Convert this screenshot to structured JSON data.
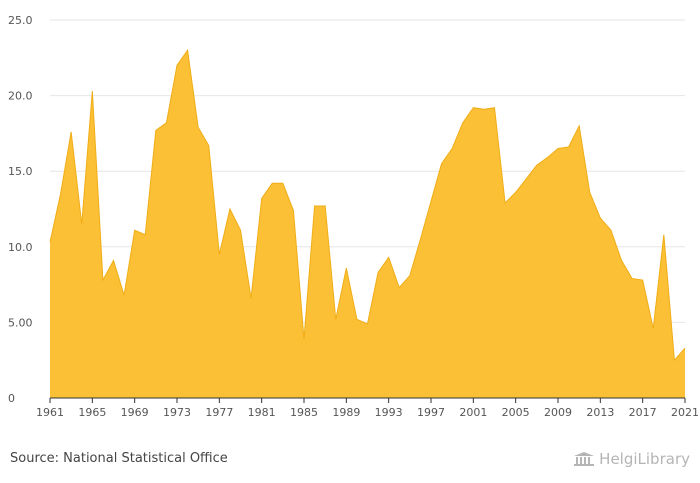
{
  "chart_data": {
    "type": "area",
    "x": [
      1961,
      1962,
      1963,
      1964,
      1965,
      1966,
      1967,
      1968,
      1969,
      1970,
      1971,
      1972,
      1973,
      1974,
      1975,
      1976,
      1977,
      1978,
      1979,
      1980,
      1981,
      1982,
      1983,
      1984,
      1985,
      1986,
      1987,
      1988,
      1989,
      1990,
      1991,
      1992,
      1993,
      1994,
      1995,
      1996,
      1997,
      1998,
      1999,
      2000,
      2001,
      2002,
      2003,
      2004,
      2005,
      2006,
      2007,
      2008,
      2009,
      2010,
      2011,
      2012,
      2013,
      2014,
      2015,
      2016,
      2017,
      2018,
      2019,
      2020,
      2021
    ],
    "values": [
      10.3,
      13.5,
      17.6,
      11.5,
      20.3,
      7.8,
      9.1,
      6.8,
      11.1,
      10.8,
      17.7,
      18.2,
      22.0,
      23.0,
      17.9,
      16.7,
      9.5,
      12.5,
      11.1,
      6.6,
      13.2,
      14.2,
      14.2,
      12.4,
      3.9,
      12.7,
      12.7,
      5.2,
      8.6,
      5.2,
      4.9,
      8.3,
      9.3,
      7.3,
      8.1,
      10.5,
      13.0,
      15.5,
      16.5,
      18.2,
      19.2,
      19.1,
      19.2,
      12.9,
      13.6,
      14.5,
      15.4,
      15.9,
      16.5,
      16.6,
      18.0,
      13.6,
      11.9,
      11.1,
      9.1,
      7.9,
      7.8,
      4.6,
      10.8,
      2.5,
      3.3
    ],
    "x_tick_labels": [
      "1961",
      "1965",
      "1969",
      "1973",
      "1977",
      "1981",
      "1985",
      "1989",
      "1993",
      "1997",
      "2001",
      "2005",
      "2009",
      "2013",
      "2017",
      "2021"
    ],
    "y_tick_labels": [
      "0",
      "5.00",
      "10.0",
      "15.0",
      "20.0",
      "25.0"
    ],
    "y_ticks": [
      0,
      5,
      10,
      15,
      20,
      25
    ],
    "ylim": [
      0,
      25
    ],
    "xlim": [
      1961,
      2021
    ],
    "grid": "horizontal",
    "title": "",
    "xlabel": "",
    "ylabel": "",
    "colors": {
      "fill": "#fbbd2b",
      "stroke": "#f0ad16",
      "grid": "#e6e6e6",
      "axis": "#333333"
    }
  },
  "footer": {
    "source": "Source: National Statistical Office",
    "brand": "HelgiLibrary",
    "brand_icon": "library-building-icon"
  }
}
